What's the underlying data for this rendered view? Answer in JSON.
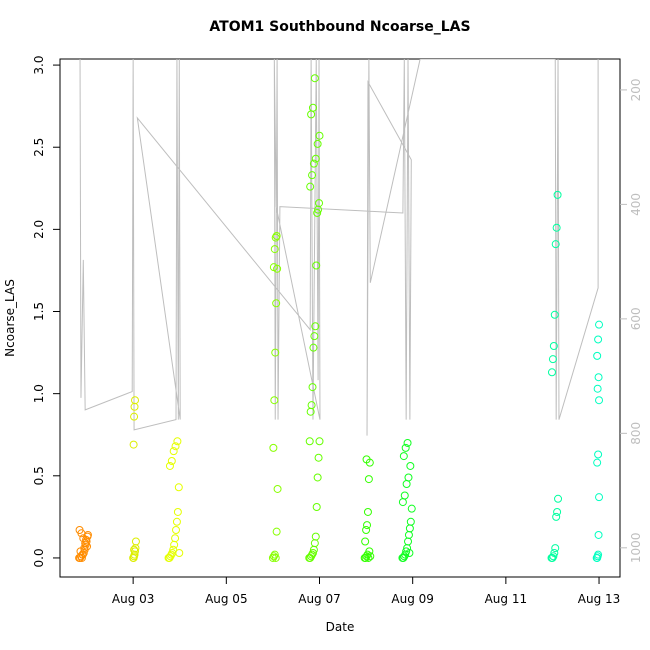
{
  "chart_data": {
    "type": "scatter",
    "title": "ATOM1 Southbound Ncoarse_LAS",
    "xlabel": "Date",
    "ylabel": "Ncoarse_LAS",
    "xlim": [
      1.43,
      13.45
    ],
    "xticks": [
      {
        "value": 3,
        "label": "Aug 03"
      },
      {
        "value": 5,
        "label": "Aug 05"
      },
      {
        "value": 7,
        "label": "Aug 07"
      },
      {
        "value": 9,
        "label": "Aug 09"
      },
      {
        "value": 11,
        "label": "Aug 11"
      },
      {
        "value": 13,
        "label": "Aug 13"
      }
    ],
    "ylim": [
      -0.116,
      3.037
    ],
    "yticks": [
      {
        "value": 0,
        "label": "0.0"
      },
      0.5,
      {
        "value": 1,
        "label": "1.0"
      },
      1.5,
      {
        "value": 2,
        "label": "2.0"
      },
      2.5,
      {
        "value": 3,
        "label": "3.0"
      }
    ],
    "y2lim": [
      1051,
      146
    ],
    "y2ticks": [
      200,
      400,
      600,
      800,
      1000
    ],
    "y2_color": "#bebebe",
    "series": [
      {
        "color": "#ff8c00",
        "x": [
          1.84,
          1.86,
          1.88,
          1.9,
          1.92,
          1.94,
          1.96,
          1.98,
          2.0,
          2.02,
          1.85,
          1.89,
          1.93,
          1.97,
          2.01,
          1.87,
          1.91,
          1.95,
          1.99,
          2.03
        ],
        "values": [
          0,
          0,
          0.01,
          0,
          0.02,
          0.03,
          0.05,
          0.08,
          0.1,
          0.13,
          0.17,
          0.15,
          0.12,
          0.09,
          0.07,
          0.04,
          0.02,
          0.06,
          0.11,
          0.14
        ]
      },
      {
        "color": "#ddee00",
        "x": [
          3.0,
          3.01,
          3.02,
          3.03,
          3.04,
          3.05,
          3.06,
          3.01,
          3.02,
          3.03,
          3.04,
          3.02
        ],
        "values": [
          0,
          0,
          0.01,
          0.02,
          0.04,
          0.06,
          0.1,
          0.69,
          0.86,
          0.92,
          0.96,
          0.05
        ]
      },
      {
        "color": "#e5ff00",
        "x": [
          3.76,
          3.78,
          3.8,
          3.82,
          3.84,
          3.86,
          3.88,
          3.9,
          3.92,
          3.94,
          3.96,
          3.98,
          3.79,
          3.83,
          3.87,
          3.91,
          3.95,
          3.99
        ],
        "values": [
          0,
          0,
          0.01,
          0.02,
          0.03,
          0.05,
          0.08,
          0.12,
          0.17,
          0.22,
          0.28,
          0.43,
          0.56,
          0.59,
          0.65,
          0.68,
          0.71,
          0.03
        ]
      },
      {
        "color": "#88ff00",
        "x": [
          6.0,
          6.02,
          6.04,
          6.06,
          6.08,
          6.1,
          6.01,
          6.03,
          6.05,
          6.07,
          6.09,
          6.02,
          6.04,
          6.06,
          6.08
        ],
        "values": [
          0,
          0.01,
          0.02,
          0,
          0.16,
          0.42,
          0.67,
          0.96,
          1.25,
          1.55,
          1.76,
          1.77,
          1.88,
          1.95,
          1.96
        ]
      },
      {
        "color": "#66ff00",
        "x": [
          6.78,
          6.8,
          6.82,
          6.84,
          6.86,
          6.88,
          6.9,
          6.92,
          6.94,
          6.96,
          6.98,
          7.0,
          6.79,
          6.81,
          6.83,
          6.85,
          6.87,
          6.89,
          6.91,
          6.93,
          6.95,
          6.97,
          6.99,
          6.8,
          6.84,
          6.88,
          6.92,
          6.96,
          7.0,
          6.82,
          6.86,
          6.9
        ],
        "values": [
          0,
          0,
          0.01,
          0.02,
          0.03,
          0.05,
          0.09,
          0.13,
          0.31,
          0.49,
          0.61,
          0.71,
          0.71,
          0.89,
          0.93,
          1.04,
          1.28,
          1.35,
          1.41,
          1.78,
          2.1,
          2.12,
          2.16,
          2.26,
          2.33,
          2.4,
          2.43,
          2.52,
          2.57,
          2.7,
          2.74,
          2.92
        ]
      },
      {
        "color": "#33ff00",
        "x": [
          7.97,
          7.99,
          8.01,
          8.03,
          8.05,
          8.07,
          8.09,
          7.98,
          8.0,
          8.02,
          8.04,
          8.06,
          8.08,
          8.01
        ],
        "values": [
          0,
          0,
          0.01,
          0.02,
          0,
          0.04,
          0.01,
          0.1,
          0.17,
          0.2,
          0.28,
          0.48,
          0.58,
          0.6
        ]
      },
      {
        "color": "#11ff22",
        "x": [
          8.78,
          8.8,
          8.82,
          8.84,
          8.86,
          8.88,
          8.9,
          8.92,
          8.94,
          8.96,
          8.98,
          8.79,
          8.83,
          8.87,
          8.91,
          8.95,
          8.81,
          8.85,
          8.89,
          8.93
        ],
        "values": [
          0,
          0,
          0.01,
          0.02,
          0.04,
          0.06,
          0.1,
          0.14,
          0.18,
          0.22,
          0.3,
          0.34,
          0.38,
          0.45,
          0.49,
          0.56,
          0.62,
          0.67,
          0.7,
          0.03
        ]
      },
      {
        "color": "#00ffa0",
        "x": [
          11.98,
          12.0,
          12.02,
          12.04,
          12.06,
          12.08,
          12.1,
          12.12,
          11.99,
          12.01,
          12.03,
          12.05,
          12.07,
          12.09,
          12.11
        ],
        "values": [
          0,
          0,
          0.01,
          0.03,
          0.06,
          0.25,
          0.28,
          0.36,
          1.13,
          1.21,
          1.29,
          1.48,
          1.91,
          2.01,
          2.21
        ]
      },
      {
        "color": "#00ffc0",
        "x": [
          12.95,
          12.96,
          12.97,
          12.98,
          12.99,
          13.0,
          12.96,
          12.98,
          13.0,
          12.97,
          12.99,
          12.96,
          12.98,
          13.0
        ],
        "values": [
          0,
          0,
          0.01,
          0.02,
          0.14,
          0.37,
          0.58,
          0.63,
          0.96,
          1.03,
          1.1,
          1.23,
          1.33,
          1.42
        ]
      },
      {
        "type": "line",
        "axis": "y2",
        "color": "#bebebe",
        "x": [
          1.86,
          1.88,
          1.93,
          1.97,
          2.98,
          3.0,
          3.02,
          3.92,
          3.94,
          3.97,
          3.99,
          4.01,
          3.09,
          6.8,
          6.82,
          6.86,
          6.93,
          6.97,
          6.99,
          7.01,
          6.07,
          6.03,
          6.05,
          6.09,
          6.11,
          6.15,
          8.79,
          8.82,
          8.86,
          8.9,
          8.94,
          8.97,
          8.04,
          8.02,
          8.06,
          8.09,
          9.16,
          12.06,
          12.08,
          12.12,
          12.14,
          12.98,
          12.98
        ],
        "values": [
          146,
          738,
          497,
          759,
          727,
          146,
          794,
          776,
          146,
          776,
          146,
          776,
          249,
          619,
          146,
          776,
          146,
          707,
          146,
          776,
          404,
          146,
          776,
          146,
          776,
          404,
          415,
          146,
          776,
          146,
          776,
          322,
          186,
          804,
          146,
          537,
          146,
          146,
          776,
          146,
          776,
          546,
          146
        ]
      }
    ]
  }
}
